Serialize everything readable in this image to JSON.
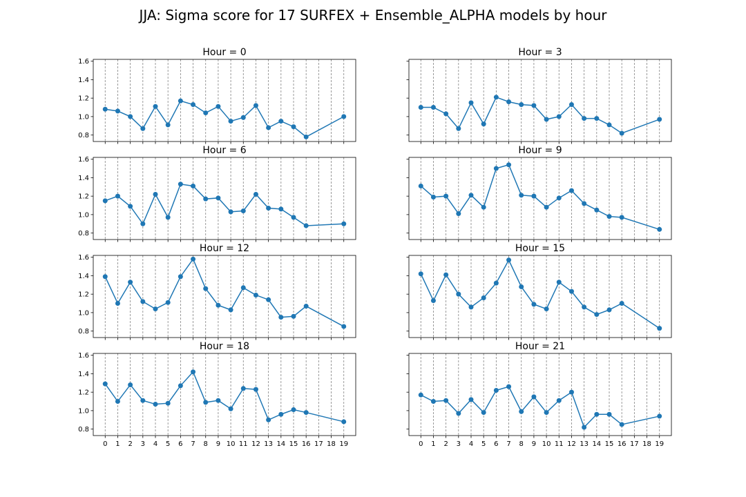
{
  "figure": {
    "suptitle": "JJA: Sigma score for 17 SURFEX + Ensemble_ALPHA models by hour"
  },
  "chart_data": [
    {
      "type": "line",
      "title": "Hour = 0",
      "x": [
        0,
        1,
        2,
        3,
        4,
        5,
        6,
        7,
        8,
        9,
        10,
        11,
        12,
        13,
        14,
        15,
        16,
        19
      ],
      "values": [
        1.08,
        1.06,
        1.0,
        0.87,
        1.11,
        0.91,
        1.17,
        1.13,
        1.04,
        1.11,
        0.95,
        0.99,
        1.12,
        0.88,
        0.95,
        0.89,
        0.78,
        1.0
      ],
      "xticks": [
        0,
        1,
        2,
        3,
        4,
        5,
        6,
        7,
        8,
        9,
        10,
        11,
        12,
        13,
        14,
        15,
        16,
        17,
        18,
        19
      ],
      "yticks": [
        0.8,
        1.0,
        1.2,
        1.4,
        1.6
      ],
      "xlim": [
        -0.95,
        19.95
      ],
      "ylim": [
        0.73,
        1.62
      ],
      "grid": "x-dashed"
    },
    {
      "type": "line",
      "title": "Hour = 3",
      "x": [
        0,
        1,
        2,
        3,
        4,
        5,
        6,
        7,
        8,
        9,
        10,
        11,
        12,
        13,
        14,
        15,
        16,
        19
      ],
      "values": [
        1.1,
        1.1,
        1.03,
        0.87,
        1.15,
        0.92,
        1.21,
        1.16,
        1.13,
        1.12,
        0.97,
        1.0,
        1.13,
        0.98,
        0.98,
        0.91,
        0.82,
        0.97
      ],
      "xticks": [
        0,
        1,
        2,
        3,
        4,
        5,
        6,
        7,
        8,
        9,
        10,
        11,
        12,
        13,
        14,
        15,
        16,
        17,
        18,
        19
      ],
      "yticks": [
        0.8,
        1.0,
        1.2,
        1.4,
        1.6
      ],
      "xlim": [
        -0.95,
        19.95
      ],
      "ylim": [
        0.73,
        1.62
      ],
      "grid": "x-dashed"
    },
    {
      "type": "line",
      "title": "Hour = 6",
      "x": [
        0,
        1,
        2,
        3,
        4,
        5,
        6,
        7,
        8,
        9,
        10,
        11,
        12,
        13,
        14,
        15,
        16,
        19
      ],
      "values": [
        1.15,
        1.2,
        1.09,
        0.9,
        1.22,
        0.97,
        1.33,
        1.31,
        1.17,
        1.18,
        1.03,
        1.04,
        1.22,
        1.07,
        1.06,
        0.97,
        0.88,
        0.9
      ],
      "xticks": [
        0,
        1,
        2,
        3,
        4,
        5,
        6,
        7,
        8,
        9,
        10,
        11,
        12,
        13,
        14,
        15,
        16,
        17,
        18,
        19
      ],
      "yticks": [
        0.8,
        1.0,
        1.2,
        1.4,
        1.6
      ],
      "xlim": [
        -0.95,
        19.95
      ],
      "ylim": [
        0.73,
        1.62
      ],
      "grid": "x-dashed"
    },
    {
      "type": "line",
      "title": "Hour = 9",
      "x": [
        0,
        1,
        2,
        3,
        4,
        5,
        6,
        7,
        8,
        9,
        10,
        11,
        12,
        13,
        14,
        15,
        16,
        19
      ],
      "values": [
        1.31,
        1.19,
        1.2,
        1.01,
        1.21,
        1.08,
        1.5,
        1.54,
        1.21,
        1.2,
        1.08,
        1.18,
        1.26,
        1.12,
        1.05,
        0.98,
        0.97,
        0.84
      ],
      "xticks": [
        0,
        1,
        2,
        3,
        4,
        5,
        6,
        7,
        8,
        9,
        10,
        11,
        12,
        13,
        14,
        15,
        16,
        17,
        18,
        19
      ],
      "yticks": [
        0.8,
        1.0,
        1.2,
        1.4,
        1.6
      ],
      "xlim": [
        -0.95,
        19.95
      ],
      "ylim": [
        0.73,
        1.62
      ],
      "grid": "x-dashed"
    },
    {
      "type": "line",
      "title": "Hour = 12",
      "x": [
        0,
        1,
        2,
        3,
        4,
        5,
        6,
        7,
        8,
        9,
        10,
        11,
        12,
        13,
        14,
        15,
        16,
        19
      ],
      "values": [
        1.39,
        1.1,
        1.33,
        1.12,
        1.04,
        1.11,
        1.39,
        1.58,
        1.26,
        1.08,
        1.03,
        1.27,
        1.19,
        1.14,
        0.95,
        0.96,
        1.07,
        0.85
      ],
      "xticks": [
        0,
        1,
        2,
        3,
        4,
        5,
        6,
        7,
        8,
        9,
        10,
        11,
        12,
        13,
        14,
        15,
        16,
        17,
        18,
        19
      ],
      "yticks": [
        0.8,
        1.0,
        1.2,
        1.4,
        1.6
      ],
      "xlim": [
        -0.95,
        19.95
      ],
      "ylim": [
        0.73,
        1.62
      ],
      "grid": "x-dashed"
    },
    {
      "type": "line",
      "title": "Hour = 15",
      "x": [
        0,
        1,
        2,
        3,
        4,
        5,
        6,
        7,
        8,
        9,
        10,
        11,
        12,
        13,
        14,
        15,
        16,
        19
      ],
      "values": [
        1.42,
        1.13,
        1.41,
        1.2,
        1.06,
        1.16,
        1.32,
        1.57,
        1.28,
        1.09,
        1.04,
        1.33,
        1.23,
        1.06,
        0.98,
        1.03,
        1.1,
        0.83
      ],
      "xticks": [
        0,
        1,
        2,
        3,
        4,
        5,
        6,
        7,
        8,
        9,
        10,
        11,
        12,
        13,
        14,
        15,
        16,
        17,
        18,
        19
      ],
      "yticks": [
        0.8,
        1.0,
        1.2,
        1.4,
        1.6
      ],
      "xlim": [
        -0.95,
        19.95
      ],
      "ylim": [
        0.73,
        1.62
      ],
      "grid": "x-dashed"
    },
    {
      "type": "line",
      "title": "Hour = 18",
      "x": [
        0,
        1,
        2,
        3,
        4,
        5,
        6,
        7,
        8,
        9,
        10,
        11,
        12,
        13,
        14,
        15,
        16,
        19
      ],
      "values": [
        1.29,
        1.1,
        1.28,
        1.11,
        1.07,
        1.08,
        1.27,
        1.42,
        1.09,
        1.11,
        1.02,
        1.24,
        1.23,
        0.9,
        0.96,
        1.01,
        0.98,
        0.88
      ],
      "xticks": [
        0,
        1,
        2,
        3,
        4,
        5,
        6,
        7,
        8,
        9,
        10,
        11,
        12,
        13,
        14,
        15,
        16,
        17,
        18,
        19
      ],
      "yticks": [
        0.8,
        1.0,
        1.2,
        1.4,
        1.6
      ],
      "xlim": [
        -0.95,
        19.95
      ],
      "ylim": [
        0.73,
        1.62
      ],
      "grid": "x-dashed"
    },
    {
      "type": "line",
      "title": "Hour = 21",
      "x": [
        0,
        1,
        2,
        3,
        4,
        5,
        6,
        7,
        8,
        9,
        10,
        11,
        12,
        13,
        14,
        15,
        16,
        19
      ],
      "values": [
        1.17,
        1.1,
        1.11,
        0.97,
        1.12,
        0.98,
        1.22,
        1.26,
        0.99,
        1.15,
        0.98,
        1.11,
        1.2,
        0.82,
        0.96,
        0.96,
        0.85,
        0.94
      ],
      "xticks": [
        0,
        1,
        2,
        3,
        4,
        5,
        6,
        7,
        8,
        9,
        10,
        11,
        12,
        13,
        14,
        15,
        16,
        17,
        18,
        19
      ],
      "yticks": [
        0.8,
        1.0,
        1.2,
        1.4,
        1.6
      ],
      "xlim": [
        -0.95,
        19.95
      ],
      "ylim": [
        0.73,
        1.62
      ],
      "grid": "x-dashed"
    }
  ]
}
